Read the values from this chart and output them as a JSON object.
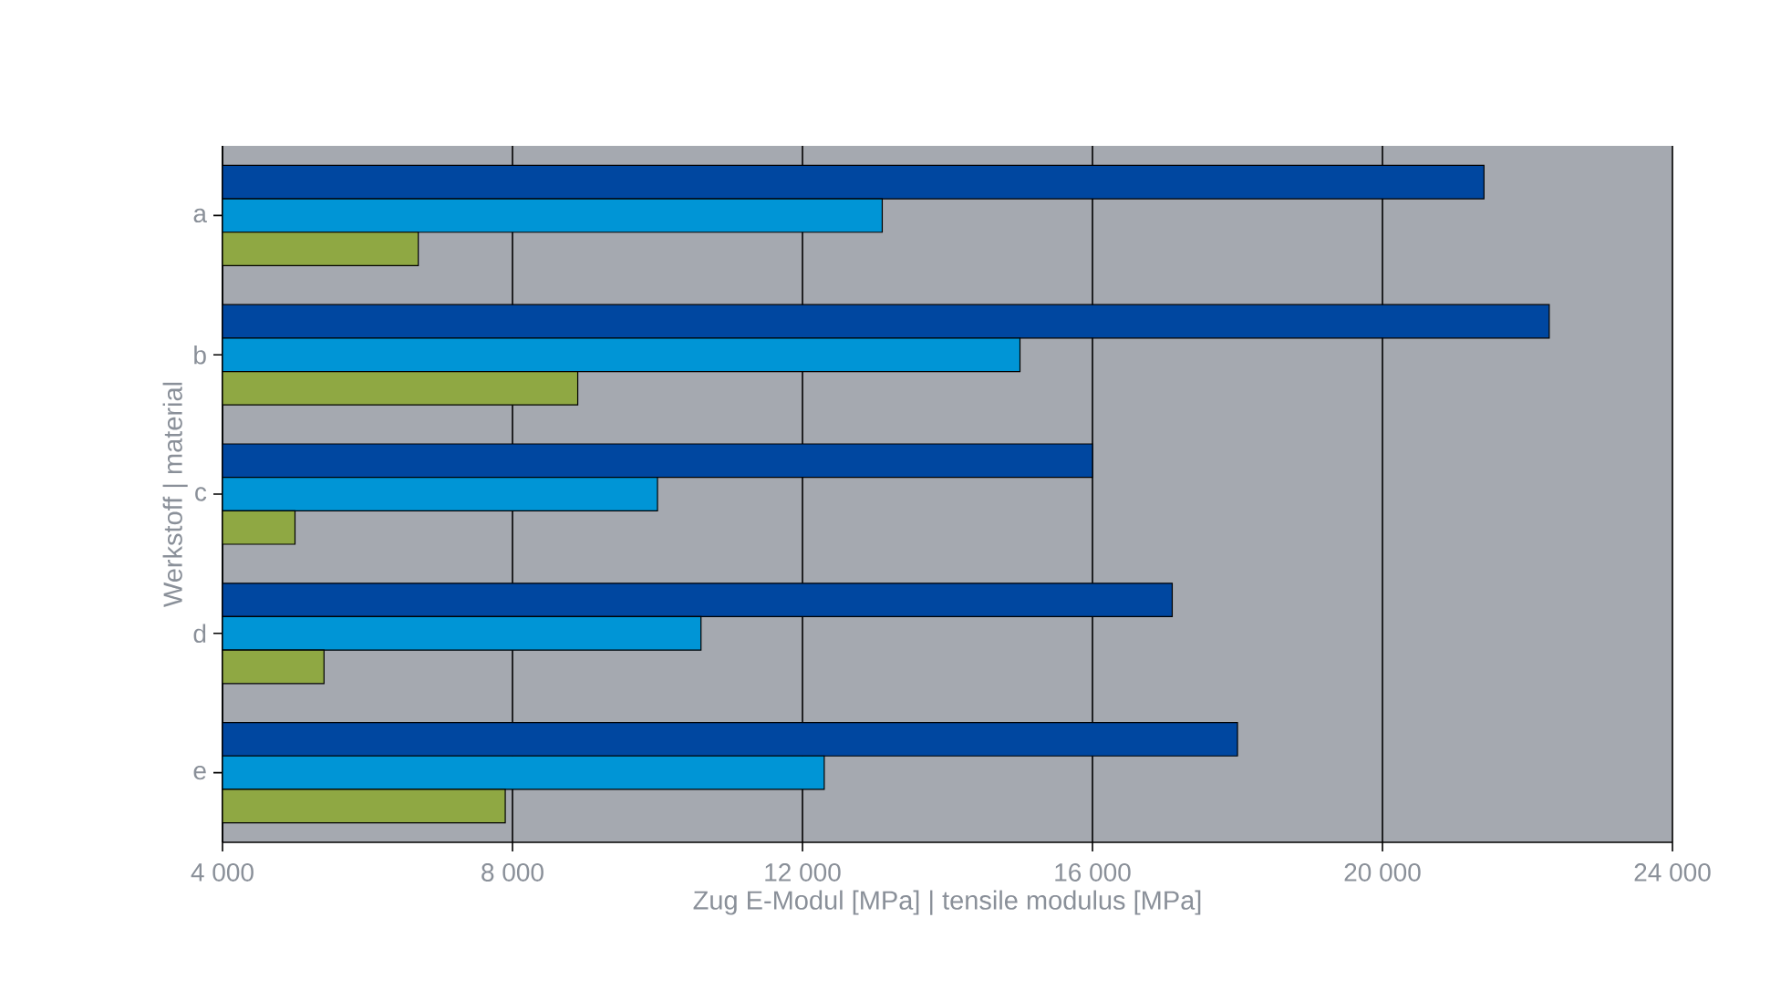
{
  "chart_data": {
    "type": "bar",
    "orientation": "horizontal",
    "xlabel": "Zug E-Modul [MPa] | tensile modulus [MPa]",
    "ylabel": "Werkstoff | material",
    "categories": [
      "a",
      "b",
      "c",
      "d",
      "e"
    ],
    "series": [
      {
        "color": "#0047a0",
        "values": [
          21400,
          22300,
          16000,
          17100,
          18000
        ]
      },
      {
        "color": "#0095d6",
        "values": [
          13100,
          15000,
          10000,
          10600,
          12300
        ]
      },
      {
        "color": "#8fa843",
        "values": [
          6700,
          8900,
          5000,
          5400,
          7900
        ]
      }
    ],
    "xlim": [
      4000,
      24000
    ],
    "xticks": [
      {
        "value": 4000,
        "label": "4 000"
      },
      {
        "value": 8000,
        "label": "8 000"
      },
      {
        "value": 12000,
        "label": "12 000"
      },
      {
        "value": 16000,
        "label": "16 000"
      },
      {
        "value": 20000,
        "label": "20 000"
      },
      {
        "value": 24000,
        "label": "24 000"
      }
    ],
    "grid": "x"
  }
}
